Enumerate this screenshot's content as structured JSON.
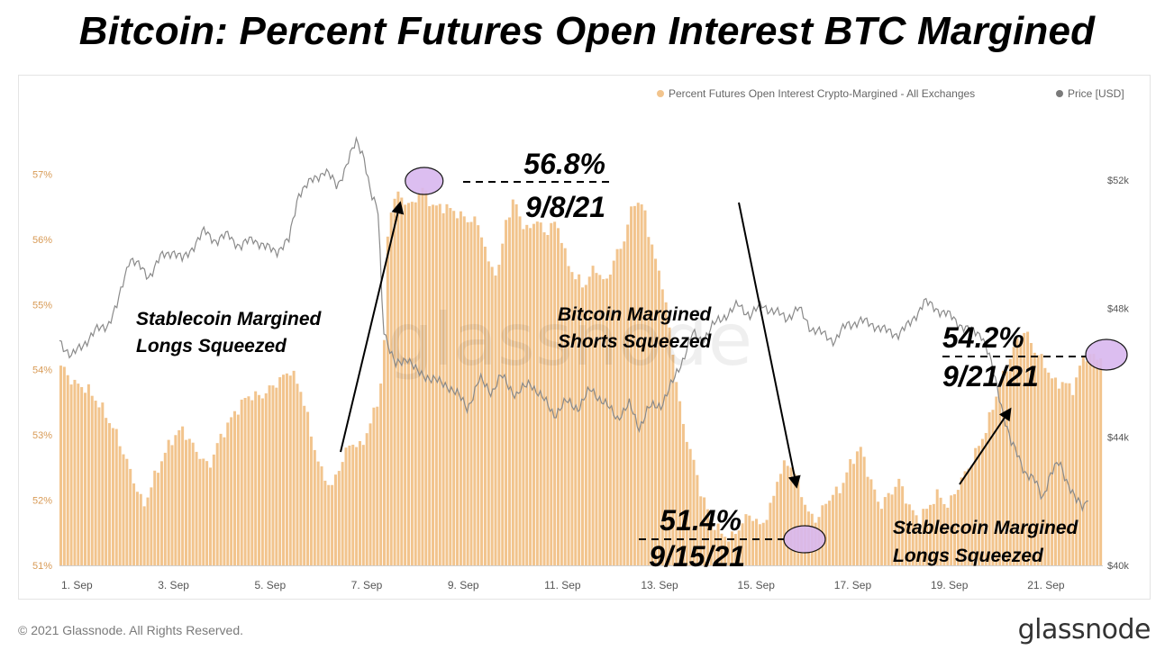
{
  "title": "Bitcoin: Percent Futures Open Interest BTC Margined",
  "footer": {
    "copyright": "© 2021 Glassnode. All Rights Reserved.",
    "brand": "glassnode"
  },
  "watermark": "glassnode",
  "colors": {
    "bars": "#f2c48d",
    "price": "#8a8a8a",
    "highlight": "#d9b8ef",
    "left_axis": "#d89a55",
    "right_axis": "#555555"
  },
  "chart_data": {
    "type": "bar",
    "legend_position": "top-right",
    "legend": [
      {
        "name": "Percent Futures Open Interest Crypto-Margined - All Exchanges",
        "color": "#f2c48d"
      },
      {
        "name": "Price [USD]",
        "color": "#7a7a7a"
      }
    ],
    "x_range": [
      1.0,
      22.6
    ],
    "x_ticks": [
      {
        "label": "1. Sep",
        "x": 1
      },
      {
        "label": "3. Sep",
        "x": 3
      },
      {
        "label": "5. Sep",
        "x": 5
      },
      {
        "label": "7. Sep",
        "x": 7
      },
      {
        "label": "9. Sep",
        "x": 9
      },
      {
        "label": "11. Sep",
        "x": 11
      },
      {
        "label": "13. Sep",
        "x": 13
      },
      {
        "label": "15. Sep",
        "x": 15
      },
      {
        "label": "17. Sep",
        "x": 17
      },
      {
        "label": "19. Sep",
        "x": 19
      },
      {
        "label": "21. Sep",
        "x": 21
      }
    ],
    "y_left": {
      "range": [
        51,
        57.6
      ],
      "ticks": [
        "51%",
        "52%",
        "53%",
        "54%",
        "55%",
        "56%",
        "57%"
      ],
      "tick_values": [
        51,
        52,
        53,
        54,
        55,
        56,
        57
      ]
    },
    "y_right": {
      "range": [
        40000,
        53400
      ],
      "ticks": [
        "$40k",
        "$44k",
        "$48k",
        "$52k"
      ],
      "tick_values": [
        40000,
        44000,
        48000,
        52000
      ]
    },
    "series": [
      {
        "name": "Percent Futures Open Interest Crypto-Margined - All Exchanges",
        "kind": "bars",
        "points": [
          [
            1.0,
            54.1
          ],
          [
            1.3,
            53.8
          ],
          [
            1.6,
            53.7
          ],
          [
            1.9,
            53.4
          ],
          [
            2.2,
            53.0
          ],
          [
            2.5,
            52.4
          ],
          [
            2.75,
            51.9
          ],
          [
            3.0,
            52.4
          ],
          [
            3.3,
            52.9
          ],
          [
            3.55,
            53.1
          ],
          [
            3.8,
            52.8
          ],
          [
            4.1,
            52.5
          ],
          [
            4.3,
            52.9
          ],
          [
            4.6,
            53.3
          ],
          [
            4.9,
            53.6
          ],
          [
            5.2,
            53.6
          ],
          [
            5.5,
            53.8
          ],
          [
            5.8,
            54.0
          ],
          [
            6.05,
            53.6
          ],
          [
            6.25,
            52.9
          ],
          [
            6.45,
            52.4
          ],
          [
            6.65,
            52.2
          ],
          [
            6.85,
            52.6
          ],
          [
            7.05,
            52.9
          ],
          [
            7.25,
            52.8
          ],
          [
            7.4,
            53.1
          ],
          [
            7.55,
            53.4
          ],
          [
            7.65,
            53.7
          ],
          [
            7.75,
            54.6
          ],
          [
            7.82,
            56.4
          ],
          [
            8.0,
            56.7
          ],
          [
            8.15,
            56.6
          ],
          [
            8.3,
            56.5
          ],
          [
            8.5,
            56.8
          ],
          [
            8.75,
            56.5
          ],
          [
            9.0,
            56.5
          ],
          [
            9.25,
            56.4
          ],
          [
            9.45,
            56.3
          ],
          [
            9.6,
            56.3
          ],
          [
            9.75,
            56.1
          ],
          [
            9.9,
            55.6
          ],
          [
            10.1,
            55.5
          ],
          [
            10.25,
            56.3
          ],
          [
            10.45,
            56.6
          ],
          [
            10.65,
            56.1
          ],
          [
            10.85,
            56.3
          ],
          [
            11.1,
            56.1
          ],
          [
            11.3,
            56.3
          ],
          [
            11.5,
            55.7
          ],
          [
            11.7,
            55.4
          ],
          [
            11.9,
            55.3
          ],
          [
            12.1,
            55.6
          ],
          [
            12.3,
            55.3
          ],
          [
            12.5,
            55.7
          ],
          [
            12.7,
            56.0
          ],
          [
            12.9,
            56.6
          ],
          [
            13.1,
            56.5
          ],
          [
            13.3,
            55.8
          ],
          [
            13.5,
            55.3
          ],
          [
            13.7,
            54.3
          ],
          [
            13.9,
            53.2
          ],
          [
            14.1,
            52.7
          ],
          [
            14.3,
            52.1
          ],
          [
            14.5,
            51.7
          ],
          [
            14.7,
            51.5
          ],
          [
            14.9,
            51.4
          ],
          [
            15.1,
            51.6
          ],
          [
            15.3,
            51.8
          ],
          [
            15.5,
            51.6
          ],
          [
            15.7,
            51.8
          ],
          [
            15.9,
            52.4
          ],
          [
            16.1,
            52.6
          ],
          [
            16.3,
            52.3
          ],
          [
            16.5,
            51.8
          ],
          [
            16.7,
            51.7
          ],
          [
            16.9,
            52.0
          ],
          [
            17.2,
            52.2
          ],
          [
            17.4,
            52.6
          ],
          [
            17.6,
            52.8
          ],
          [
            17.8,
            52.3
          ],
          [
            18.0,
            51.9
          ],
          [
            18.2,
            52.1
          ],
          [
            18.4,
            52.3
          ],
          [
            18.6,
            51.9
          ],
          [
            18.8,
            51.7
          ],
          [
            19.0,
            51.9
          ],
          [
            19.2,
            52.1
          ],
          [
            19.4,
            51.9
          ],
          [
            19.6,
            52.2
          ],
          [
            19.9,
            52.6
          ],
          [
            20.2,
            53.1
          ],
          [
            20.4,
            53.6
          ],
          [
            20.6,
            54.0
          ],
          [
            20.8,
            54.4
          ],
          [
            21.0,
            54.6
          ],
          [
            21.2,
            54.3
          ],
          [
            21.4,
            54.1
          ],
          [
            21.6,
            53.8
          ],
          [
            21.8,
            53.8
          ],
          [
            22.0,
            53.7
          ],
          [
            22.2,
            54.2
          ],
          [
            22.6,
            54.2
          ]
        ]
      },
      {
        "name": "Price [USD]",
        "kind": "line",
        "points": [
          [
            1.0,
            47.0
          ],
          [
            1.25,
            46.5
          ],
          [
            1.5,
            46.9
          ],
          [
            1.75,
            47.3
          ],
          [
            2.0,
            47.5
          ],
          [
            2.2,
            48.1
          ],
          [
            2.45,
            49.6
          ],
          [
            2.65,
            49.3
          ],
          [
            2.85,
            49.0
          ],
          [
            3.1,
            49.6
          ],
          [
            3.35,
            49.8
          ],
          [
            3.55,
            49.5
          ],
          [
            3.8,
            50.0
          ],
          [
            4.0,
            50.4
          ],
          [
            4.25,
            50.1
          ],
          [
            4.5,
            50.3
          ],
          [
            4.75,
            49.9
          ],
          [
            5.0,
            50.2
          ],
          [
            5.25,
            49.9
          ],
          [
            5.5,
            49.8
          ],
          [
            5.75,
            50.1
          ],
          [
            5.95,
            51.6
          ],
          [
            6.25,
            52.0
          ],
          [
            6.5,
            52.3
          ],
          [
            6.75,
            51.8
          ],
          [
            6.95,
            52.5
          ],
          [
            7.15,
            53.2
          ],
          [
            7.3,
            52.8
          ],
          [
            7.45,
            51.5
          ],
          [
            7.6,
            51.0
          ],
          [
            7.7,
            47.5
          ],
          [
            7.8,
            46.9
          ],
          [
            7.95,
            46.2
          ],
          [
            8.2,
            46.5
          ],
          [
            8.4,
            46.0
          ],
          [
            8.6,
            45.9
          ],
          [
            8.85,
            45.7
          ],
          [
            9.05,
            45.6
          ],
          [
            9.25,
            45.3
          ],
          [
            9.45,
            44.9
          ],
          [
            9.7,
            45.8
          ],
          [
            9.95,
            45.4
          ],
          [
            10.15,
            45.9
          ],
          [
            10.45,
            45.3
          ],
          [
            10.75,
            45.7
          ],
          [
            11.0,
            45.2
          ],
          [
            11.25,
            44.7
          ],
          [
            11.5,
            45.1
          ],
          [
            11.75,
            44.9
          ],
          [
            12.0,
            45.5
          ],
          [
            12.25,
            45.1
          ],
          [
            12.55,
            44.6
          ],
          [
            12.8,
            45.0
          ],
          [
            13.0,
            44.3
          ],
          [
            13.2,
            44.9
          ],
          [
            13.45,
            45.0
          ],
          [
            13.7,
            45.7
          ],
          [
            13.9,
            46.4
          ],
          [
            14.1,
            47.2
          ],
          [
            14.3,
            47.0
          ],
          [
            14.55,
            47.5
          ],
          [
            14.8,
            47.8
          ],
          [
            15.05,
            48.1
          ],
          [
            15.3,
            47.8
          ],
          [
            15.55,
            48.1
          ],
          [
            15.8,
            47.9
          ],
          [
            16.05,
            47.7
          ],
          [
            16.3,
            48.0
          ],
          [
            16.55,
            47.4
          ],
          [
            16.8,
            47.2
          ],
          [
            17.05,
            47.0
          ],
          [
            17.3,
            47.5
          ],
          [
            17.6,
            47.6
          ],
          [
            17.85,
            47.5
          ],
          [
            18.1,
            47.3
          ],
          [
            18.35,
            47.2
          ],
          [
            18.6,
            47.5
          ],
          [
            18.9,
            48.2
          ],
          [
            19.15,
            48.0
          ],
          [
            19.4,
            47.8
          ],
          [
            19.65,
            47.5
          ],
          [
            19.85,
            47.3
          ],
          [
            20.1,
            47.2
          ],
          [
            20.25,
            46.5
          ],
          [
            20.4,
            45.6
          ],
          [
            20.55,
            44.7
          ],
          [
            20.7,
            43.8
          ],
          [
            20.85,
            43.4
          ],
          [
            21.0,
            42.9
          ],
          [
            21.2,
            42.6
          ],
          [
            21.35,
            42.1
          ],
          [
            21.5,
            42.8
          ],
          [
            21.7,
            43.2
          ],
          [
            21.9,
            42.5
          ],
          [
            22.05,
            42.0
          ],
          [
            22.2,
            41.8
          ],
          [
            22.3,
            42.2
          ]
        ]
      }
    ],
    "annotations": [
      {
        "text": "56.8%",
        "sub": "9/8/21",
        "x": 8.55,
        "y": 56.8
      },
      {
        "text": "51.4%",
        "sub": "9/15/21",
        "x": 15.3,
        "y": 51.4
      },
      {
        "text": "54.2%",
        "sub": "9/21/21",
        "x": 22.3,
        "y": 54.2
      }
    ],
    "callouts": [
      {
        "line1": "Stablecoin Margined",
        "line2": "Longs Squeezed"
      },
      {
        "line1": "Bitcoin Margined",
        "line2": "Shorts Squeezed"
      },
      {
        "line1": "Stablecoin Margined",
        "line2": "Longs Squeezed"
      }
    ]
  }
}
